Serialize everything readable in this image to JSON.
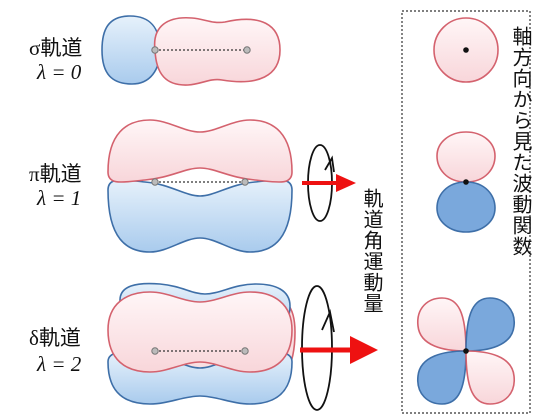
{
  "orbitals": [
    {
      "name": "σ軌道",
      "lambda": "λ = 0"
    },
    {
      "name": "π軌道",
      "lambda": "λ = 1"
    },
    {
      "name": "δ軌道",
      "lambda": "λ = 2"
    }
  ],
  "angular_momentum_label": "軌道角運動量",
  "axial_view_label": "軸方向から見た波動関数",
  "colors": {
    "pink_fill": "#fde8ea",
    "pink_stroke": "#d4626e",
    "blue_fill": "#cfe2f5",
    "blue_stroke": "#3e6fa8",
    "dark_blue_fill": "#7aa8dc",
    "arrow_red": "#ee1111"
  }
}
